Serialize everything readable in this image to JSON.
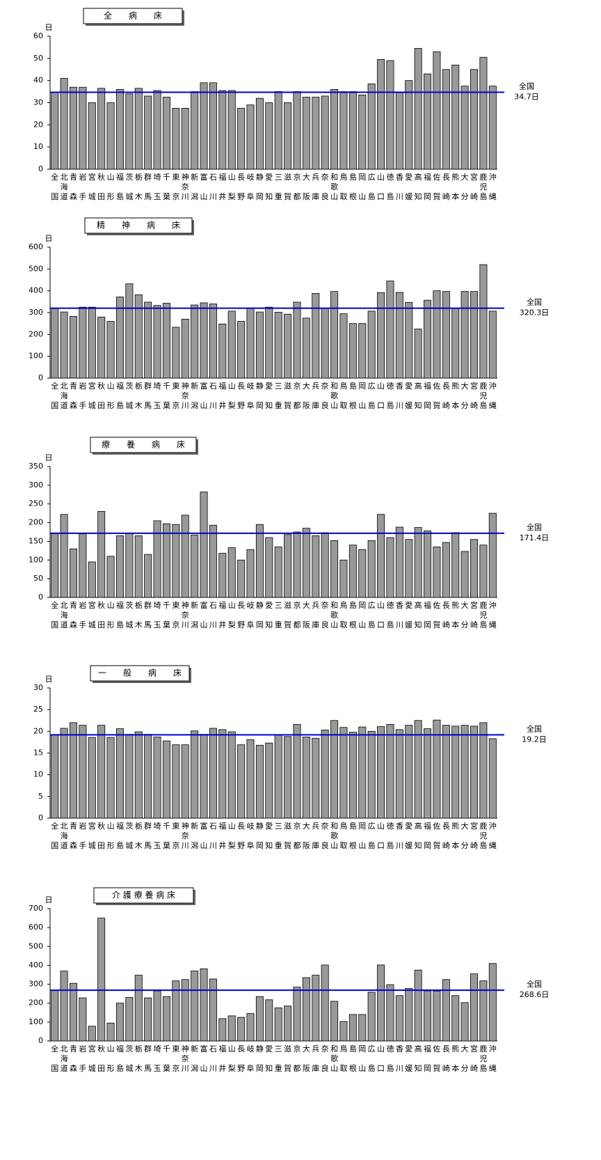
{
  "chart_data": [
    {
      "type": "bar",
      "title": "全　　病　　床",
      "y_unit": "日",
      "categories": [
        "全国",
        "北海道",
        "青森",
        "岩手",
        "宮城",
        "秋田",
        "山形",
        "福島",
        "茨城",
        "栃木",
        "群馬",
        "埼玉",
        "千葉",
        "東京",
        "神奈川",
        "新潟",
        "富山",
        "石川",
        "福井",
        "山梨",
        "長野",
        "岐阜",
        "静岡",
        "愛知",
        "三重",
        "滋賀",
        "京都",
        "大阪",
        "兵庫",
        "奈良",
        "和歌山",
        "鳥取",
        "島根",
        "岡山",
        "広島",
        "山口",
        "徳島",
        "香川",
        "愛媛",
        "高知",
        "福岡",
        "佐賀",
        "長崎",
        "熊本",
        "大分",
        "宮崎",
        "鹿児島",
        "沖縄"
      ],
      "values": [
        34.7,
        41,
        37,
        37,
        30,
        36.5,
        30,
        36,
        34,
        36.5,
        33,
        35.5,
        32.5,
        27.5,
        27.5,
        35,
        39,
        39,
        35.5,
        35.5,
        27.5,
        29,
        32,
        30,
        35,
        30,
        35,
        32.5,
        32.5,
        33,
        36,
        35,
        35,
        33.5,
        38.5,
        49.5,
        49,
        34.5,
        40,
        54.5,
        43,
        53,
        45,
        47,
        37.5,
        45,
        50.5,
        37.5
      ],
      "color": "#999999",
      "ylim": [
        0,
        60
      ],
      "yticks": [
        0,
        10,
        20,
        30,
        40,
        50,
        60
      ],
      "reference": {
        "name": "全国",
        "value": 34.7,
        "value_label": "34.7日",
        "color": "#0000cc"
      }
    },
    {
      "type": "bar",
      "title": "精　　神　　病　　床",
      "y_unit": "日",
      "categories": [
        "全国",
        "北海道",
        "青森",
        "岩手",
        "宮城",
        "秋田",
        "山形",
        "福島",
        "茨城",
        "栃木",
        "群馬",
        "埼玉",
        "千葉",
        "東京",
        "神奈川",
        "新潟",
        "富山",
        "石川",
        "福井",
        "山梨",
        "長野",
        "岐阜",
        "静岡",
        "愛知",
        "三重",
        "滋賀",
        "京都",
        "大阪",
        "兵庫",
        "奈良",
        "和歌山",
        "鳥取",
        "島根",
        "岡山",
        "広島",
        "山口",
        "徳島",
        "香川",
        "愛媛",
        "高知",
        "福岡",
        "佐賀",
        "長崎",
        "熊本",
        "大分",
        "宮崎",
        "鹿児島",
        "沖縄"
      ],
      "values": [
        320.3,
        303,
        283,
        325,
        325,
        280,
        260,
        372,
        432,
        382,
        348,
        333,
        343,
        233,
        270,
        335,
        345,
        340,
        248,
        307,
        260,
        320,
        303,
        325,
        302,
        293,
        348,
        275,
        388,
        320,
        397,
        295,
        250,
        250,
        307,
        392,
        445,
        393,
        347,
        225,
        357,
        400,
        397,
        320,
        397,
        397,
        520,
        307
      ],
      "color": "#999999",
      "ylim": [
        0,
        600
      ],
      "yticks": [
        0,
        100,
        200,
        300,
        400,
        500,
        600
      ],
      "reference": {
        "name": "全国",
        "value": 320.3,
        "value_label": "320.3日",
        "color": "#0000cc"
      }
    },
    {
      "type": "bar",
      "title": "療　　養　　病　　床",
      "y_unit": "日",
      "categories": [
        "全国",
        "北海道",
        "青森",
        "岩手",
        "宮城",
        "秋田",
        "山形",
        "福島",
        "茨城",
        "栃木",
        "群馬",
        "埼玉",
        "千葉",
        "東京",
        "神奈川",
        "新潟",
        "富山",
        "石川",
        "福井",
        "山梨",
        "長野",
        "岐阜",
        "静岡",
        "愛知",
        "三重",
        "滋賀",
        "京都",
        "大阪",
        "兵庫",
        "奈良",
        "和歌山",
        "鳥取",
        "島根",
        "岡山",
        "広島",
        "山口",
        "徳島",
        "香川",
        "愛媛",
        "高知",
        "福岡",
        "佐賀",
        "長崎",
        "熊本",
        "大分",
        "宮崎",
        "鹿児島",
        "沖縄"
      ],
      "values": [
        171.4,
        222,
        130,
        170,
        95,
        230,
        110,
        165,
        172,
        165,
        115,
        205,
        197,
        195,
        220,
        167,
        282,
        193,
        118,
        133,
        100,
        128,
        195,
        160,
        135,
        168,
        175,
        185,
        165,
        173,
        152,
        100,
        140,
        128,
        152,
        222,
        160,
        188,
        155,
        187,
        178,
        135,
        147,
        173,
        123,
        155,
        140,
        225
      ],
      "color": "#999999",
      "ylim": [
        0,
        350
      ],
      "yticks": [
        0,
        50,
        100,
        150,
        200,
        250,
        300,
        350
      ],
      "reference": {
        "name": "全国",
        "value": 171.4,
        "value_label": "171.4日",
        "color": "#0000cc"
      }
    },
    {
      "type": "bar",
      "title": "一　　般　　病　　床",
      "y_unit": "日",
      "categories": [
        "全国",
        "北海道",
        "青森",
        "岩手",
        "宮城",
        "秋田",
        "山形",
        "福島",
        "茨城",
        "栃木",
        "群馬",
        "埼玉",
        "千葉",
        "東京",
        "神奈川",
        "新潟",
        "富山",
        "石川",
        "福井",
        "山梨",
        "長野",
        "岐阜",
        "静岡",
        "愛知",
        "三重",
        "滋賀",
        "京都",
        "大阪",
        "兵庫",
        "奈良",
        "和歌山",
        "鳥取",
        "島根",
        "岡山",
        "広島",
        "山口",
        "徳島",
        "香川",
        "愛媛",
        "高知",
        "福岡",
        "佐賀",
        "長崎",
        "熊本",
        "大分",
        "宮崎",
        "鹿児島",
        "沖縄"
      ],
      "values": [
        19.2,
        20.7,
        22,
        21.4,
        18.6,
        21.4,
        18.6,
        20.6,
        19.3,
        19.9,
        19.3,
        18.7,
        17.8,
        16.9,
        16.9,
        20.1,
        19.3,
        20.7,
        20.4,
        19.9,
        16.9,
        18.1,
        16.8,
        17.3,
        19.2,
        18.8,
        21.6,
        18.7,
        18.4,
        20.3,
        22.5,
        20.9,
        19.8,
        21,
        20,
        21.1,
        21.6,
        20.4,
        21.4,
        22.5,
        20.6,
        22.6,
        21.4,
        21.2,
        21.4,
        21.2,
        22,
        18.3
      ],
      "color": "#999999",
      "ylim": [
        0,
        30
      ],
      "yticks": [
        0,
        5,
        10,
        15,
        20,
        25,
        30
      ],
      "reference": {
        "name": "全国",
        "value": 19.2,
        "value_label": "19.2日",
        "color": "#0000cc"
      }
    },
    {
      "type": "bar",
      "title": "介 護 療 養 病 床",
      "y_unit": "日",
      "categories": [
        "全国",
        "北海道",
        "青森",
        "岩手",
        "宮城",
        "秋田",
        "山形",
        "福島",
        "茨城",
        "栃木",
        "群馬",
        "埼玉",
        "千葉",
        "東京",
        "神奈川",
        "新潟",
        "富山",
        "石川",
        "福井",
        "山梨",
        "長野",
        "岐阜",
        "静岡",
        "愛知",
        "三重",
        "滋賀",
        "京都",
        "大阪",
        "兵庫",
        "奈良",
        "和歌山",
        "鳥取",
        "島根",
        "岡山",
        "広島",
        "山口",
        "徳島",
        "香川",
        "愛媛",
        "高知",
        "福岡",
        "佐賀",
        "長崎",
        "熊本",
        "大分",
        "宮崎",
        "鹿児島",
        "沖縄"
      ],
      "values": [
        268.6,
        370,
        305,
        228,
        78,
        650,
        95,
        200,
        230,
        348,
        228,
        265,
        235,
        318,
        325,
        370,
        382,
        328,
        118,
        133,
        125,
        145,
        235,
        218,
        175,
        185,
        285,
        335,
        348,
        402,
        210,
        103,
        140,
        140,
        258,
        402,
        298,
        240,
        278,
        375,
        265,
        263,
        325,
        240,
        203,
        355,
        318,
        410
      ],
      "color": "#999999",
      "ylim": [
        0,
        700
      ],
      "yticks": [
        0,
        100,
        200,
        300,
        400,
        500,
        600,
        700
      ],
      "reference": {
        "name": "全国",
        "value": 268.6,
        "value_label": "268.6日",
        "color": "#0000cc"
      }
    }
  ]
}
